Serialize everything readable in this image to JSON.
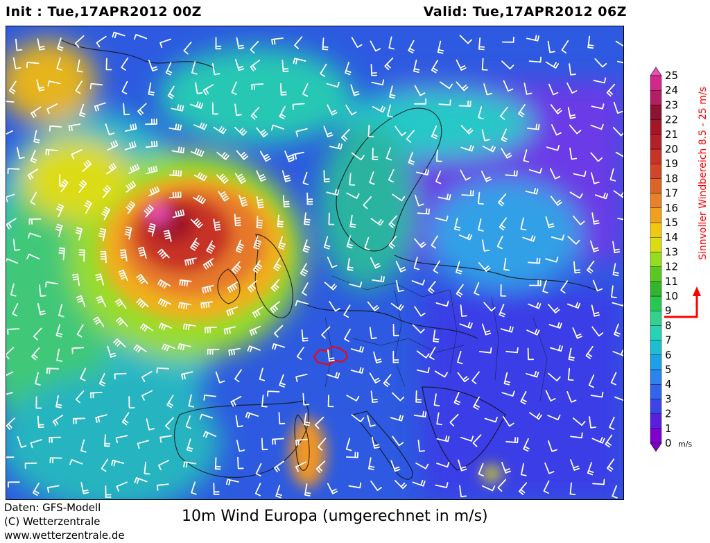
{
  "header": {
    "init_label": "Init : Tue,17APR2012 00Z",
    "valid_label": "Valid: Tue,17APR2012 06Z"
  },
  "legend": {
    "levels": [
      "0",
      "1",
      "2",
      "3",
      "4",
      "5",
      "6",
      "7",
      "8",
      "9",
      "10",
      "11",
      "12",
      "13",
      "14",
      "15",
      "16",
      "17",
      "18",
      "19",
      "20",
      "21",
      "22",
      "23",
      "24",
      "25"
    ],
    "unit": "m/s",
    "colors": [
      "#8000d0",
      "#5a1ee0",
      "#3c46e6",
      "#3264ee",
      "#2d82ee",
      "#1ea0e6",
      "#1ebed2",
      "#28d2b4",
      "#32d28c",
      "#28c850",
      "#32b42d",
      "#5ac81e",
      "#96dc1e",
      "#dcdc14",
      "#f0c814",
      "#f0a01e",
      "#e68228",
      "#dc6428",
      "#d24628",
      "#c83228",
      "#b42028",
      "#a01828",
      "#8c1432",
      "#b41e64",
      "#d2288c",
      "#e650b4"
    ],
    "range_note": "Sinnvoller Windbereich 8.5 - 25 m/s",
    "range_min": 8.5,
    "range_max": 25
  },
  "footer": {
    "data_source": "Daten: GFS-Modell",
    "copyright": "(C) Wetterzentrale",
    "website": "www.wetterzentrale.de",
    "title": "10m Wind Europa (umgerechnet in m/s)"
  },
  "map": {
    "highlight_color": "#ff0000",
    "region": "Europa"
  }
}
